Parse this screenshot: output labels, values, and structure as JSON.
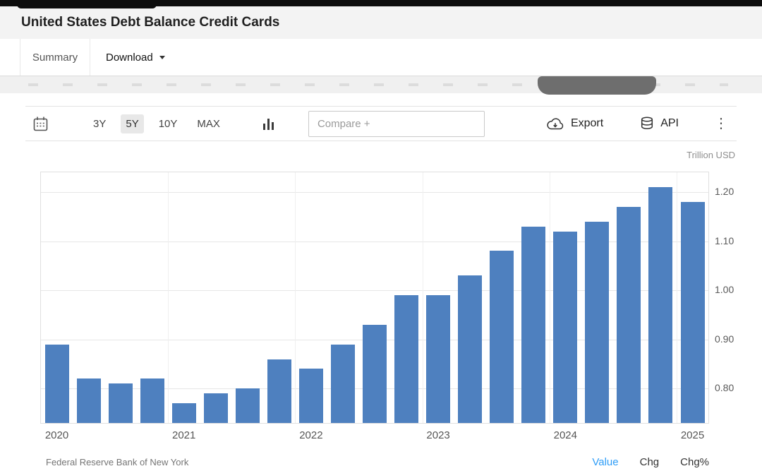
{
  "page": {
    "title": "United States Debt Balance Credit Cards"
  },
  "tabs": {
    "summary": "Summary",
    "download": "Download"
  },
  "toolbar": {
    "ranges": [
      "3Y",
      "5Y",
      "10Y",
      "MAX"
    ],
    "active_range": "5Y",
    "compare_placeholder": "Compare +",
    "export_label": "Export",
    "api_label": "API",
    "kebab_glyph": "⋮"
  },
  "chart": {
    "unit_label": "Trillion USD"
  },
  "chart_data": {
    "type": "bar",
    "title": "United States Debt Balance Credit Cards",
    "unit": "Trillion USD",
    "x": [
      "2020 Q1",
      "2020 Q2",
      "2020 Q3",
      "2020 Q4",
      "2021 Q1",
      "2021 Q2",
      "2021 Q3",
      "2021 Q4",
      "2022 Q1",
      "2022 Q2",
      "2022 Q3",
      "2022 Q4",
      "2023 Q1",
      "2023 Q2",
      "2023 Q3",
      "2023 Q4",
      "2024 Q1",
      "2024 Q2",
      "2024 Q3",
      "2024 Q4",
      "2025 Q1"
    ],
    "values": [
      0.89,
      0.82,
      0.81,
      0.82,
      0.77,
      0.79,
      0.8,
      0.86,
      0.84,
      0.89,
      0.93,
      0.99,
      0.99,
      1.03,
      1.08,
      1.13,
      1.12,
      1.14,
      1.17,
      1.21,
      1.18
    ],
    "year_ticks": [
      {
        "label": "2020",
        "index": 0
      },
      {
        "label": "2021",
        "index": 4
      },
      {
        "label": "2022",
        "index": 8
      },
      {
        "label": "2023",
        "index": 12
      },
      {
        "label": "2024",
        "index": 16
      },
      {
        "label": "2025",
        "index": 20
      }
    ],
    "y_ticks": [
      1.2,
      1.1,
      1.0,
      0.9,
      0.8
    ],
    "ylim": [
      0.73,
      1.24
    ],
    "bar_color": "#4e80bf",
    "grid": true,
    "legend": false
  },
  "footer": {
    "source": "Federal Reserve Bank of New York",
    "table_columns": [
      "Value",
      "Chg",
      "Chg%"
    ],
    "value_color": "#2e9df7"
  }
}
